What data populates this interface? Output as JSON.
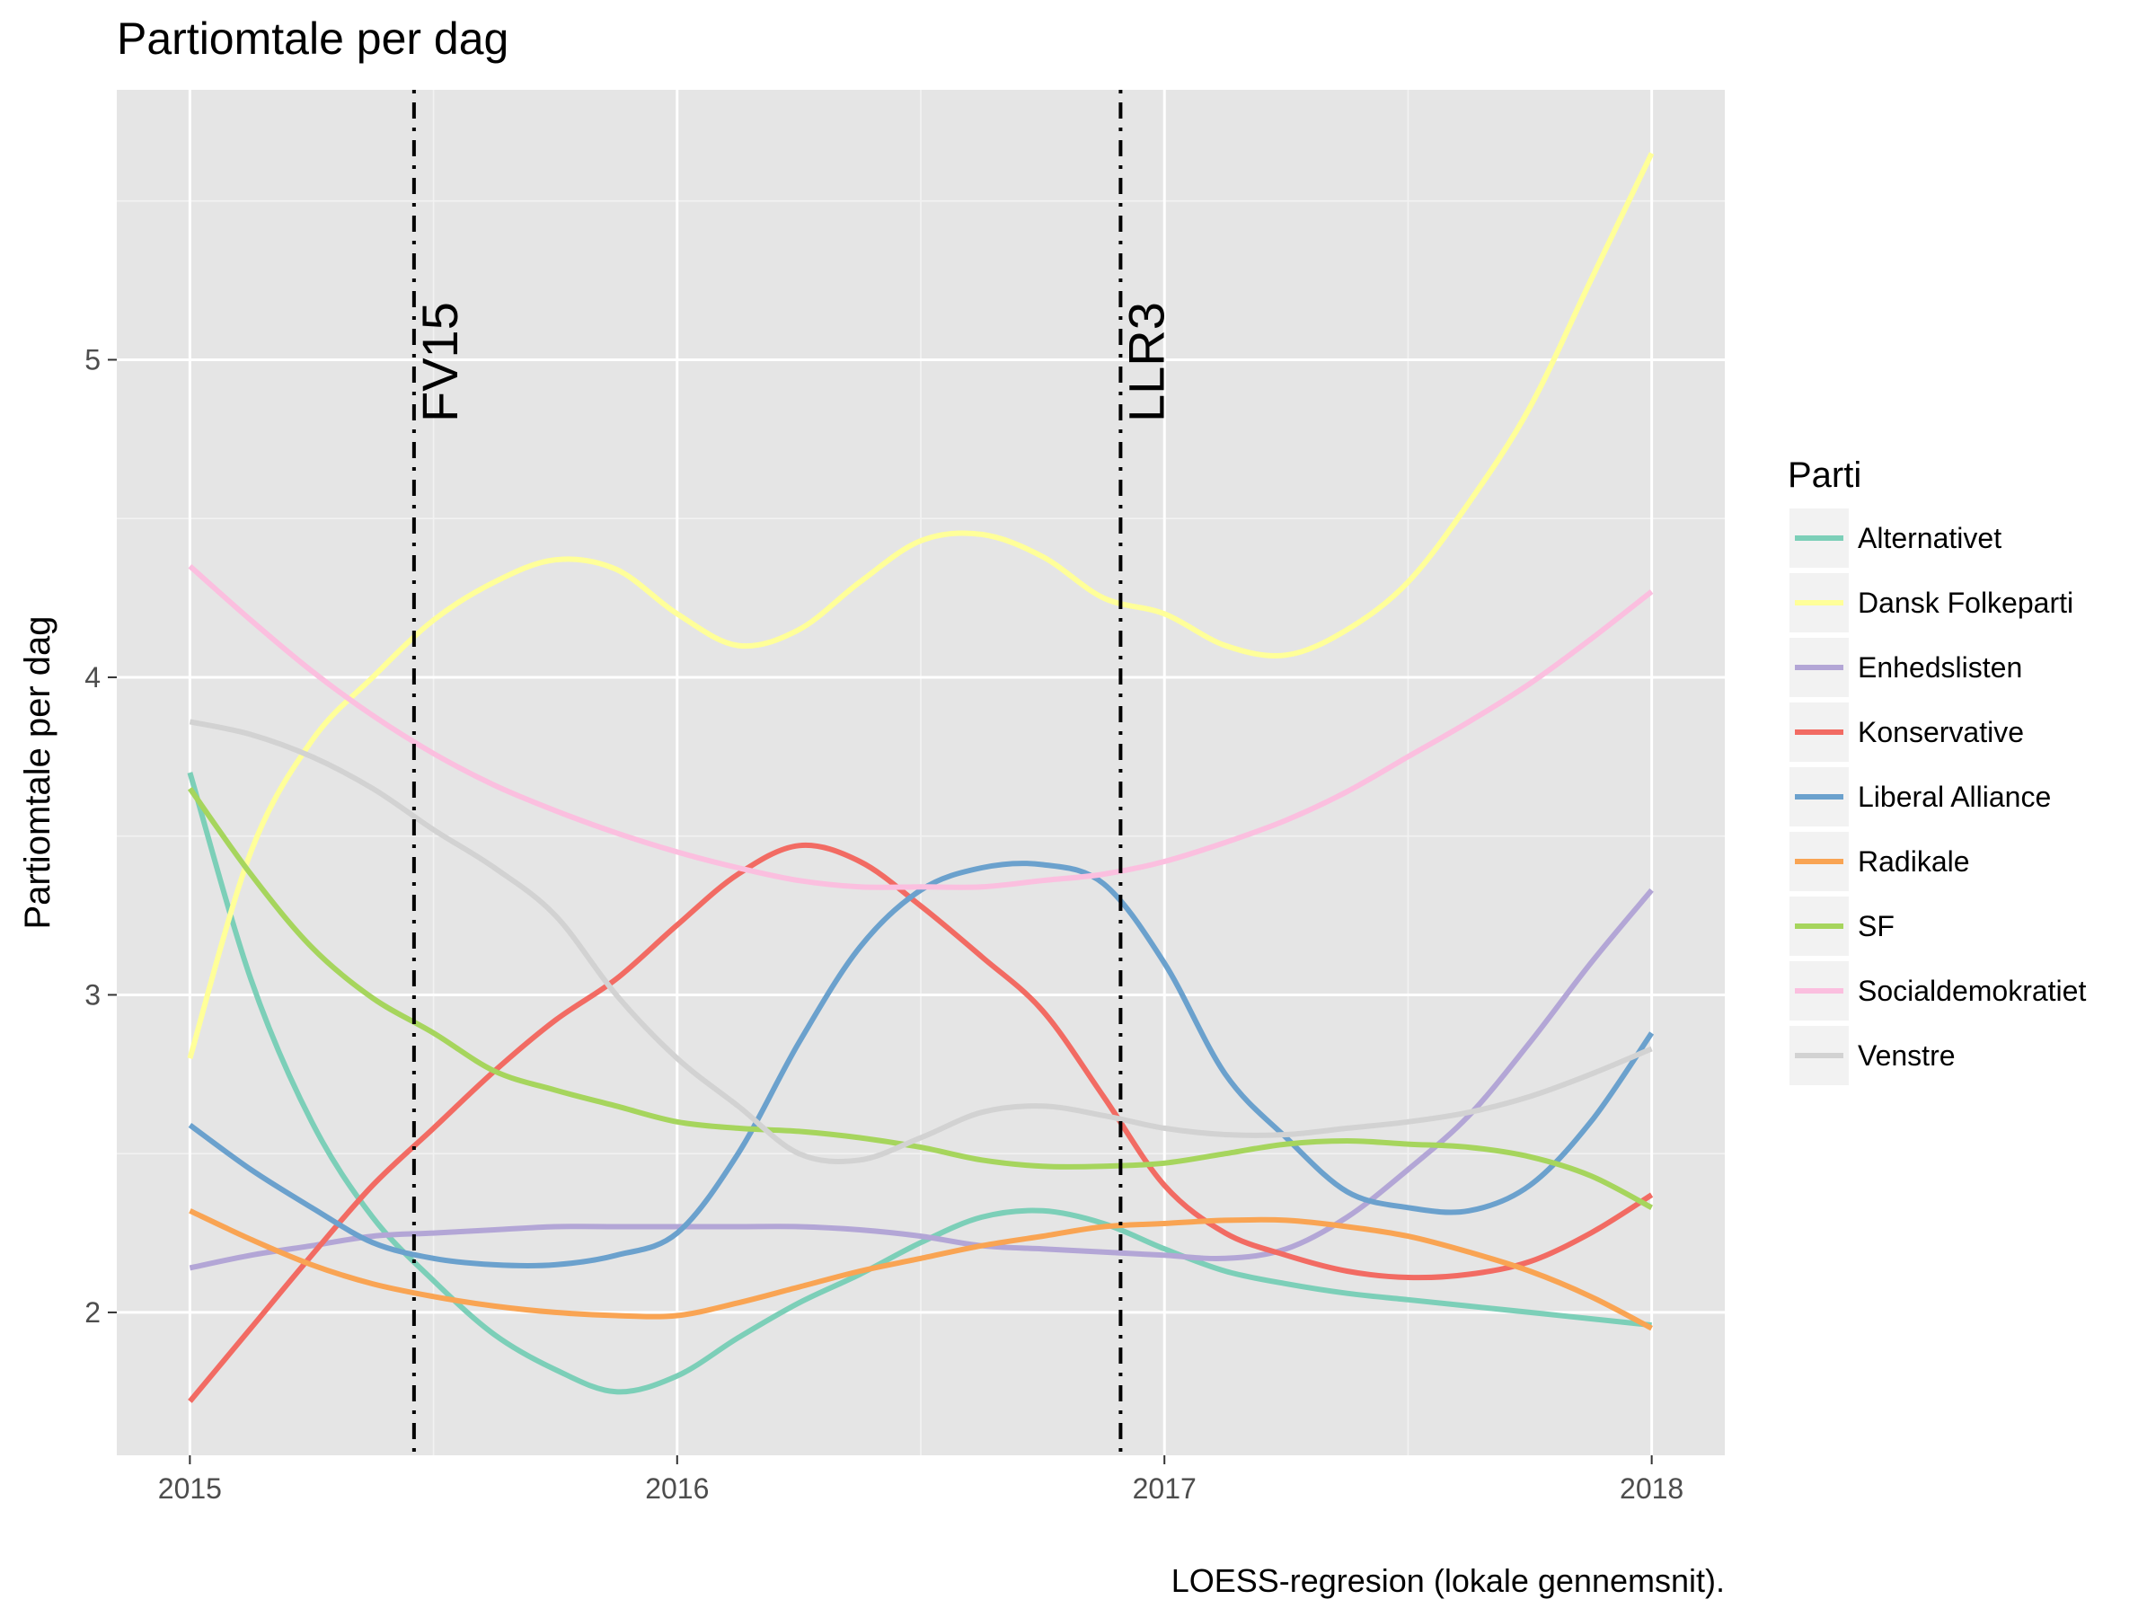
{
  "chart_data": {
    "type": "line",
    "title": "Partiomtale per dag",
    "xlabel": "",
    "ylabel": "Partiomtale per dag",
    "caption": "LOESS-regresion (lokale gennemsnit).",
    "xlim": [
      2014.85,
      2018.15
    ],
    "ylim": [
      1.55,
      5.85
    ],
    "x_ticks": [
      2015,
      2016,
      2017,
      2018
    ],
    "x_tick_labels": [
      "2015",
      "2016",
      "2017",
      "2018"
    ],
    "y_ticks": [
      2,
      3,
      4,
      5
    ],
    "y_tick_labels": [
      "2",
      "3",
      "4",
      "5"
    ],
    "grid": true,
    "legend": {
      "title": "Parti",
      "position": "right"
    },
    "vlines": [
      {
        "x": 2015.46,
        "label": "FV15"
      },
      {
        "x": 2016.91,
        "label": "LLR3"
      }
    ],
    "x": [
      2015.0,
      2015.125,
      2015.25,
      2015.375,
      2015.5,
      2015.625,
      2015.75,
      2015.875,
      2016.0,
      2016.125,
      2016.25,
      2016.375,
      2016.5,
      2016.625,
      2016.75,
      2016.875,
      2017.0,
      2017.125,
      2017.25,
      2017.375,
      2017.5,
      2017.625,
      2017.75,
      2017.875,
      2018.0
    ],
    "series": [
      {
        "name": "Alternativet",
        "color": "#7ccfb8",
        "values": [
          3.7,
          3.05,
          2.6,
          2.3,
          2.1,
          1.93,
          1.82,
          1.75,
          1.8,
          1.92,
          2.03,
          2.12,
          2.22,
          2.3,
          2.32,
          2.28,
          2.2,
          2.13,
          2.09,
          2.06,
          2.04,
          2.02,
          2.0,
          1.98,
          1.96
        ]
      },
      {
        "name": "Dansk Folkeparti",
        "color": "#ffff99",
        "values": [
          2.8,
          3.45,
          3.8,
          4.0,
          4.18,
          4.3,
          4.37,
          4.34,
          4.2,
          4.1,
          4.15,
          4.3,
          4.43,
          4.45,
          4.38,
          4.25,
          4.2,
          4.1,
          4.07,
          4.15,
          4.3,
          4.55,
          4.85,
          5.25,
          5.65
        ]
      },
      {
        "name": "Enhedslisten",
        "color": "#b3a6d6",
        "values": [
          2.14,
          2.18,
          2.21,
          2.24,
          2.25,
          2.26,
          2.27,
          2.27,
          2.27,
          2.27,
          2.27,
          2.26,
          2.24,
          2.21,
          2.2,
          2.19,
          2.18,
          2.17,
          2.2,
          2.3,
          2.45,
          2.62,
          2.85,
          3.1,
          3.33
        ]
      },
      {
        "name": "Konservative",
        "color": "#f26b63",
        "values": [
          1.72,
          1.95,
          2.18,
          2.4,
          2.58,
          2.76,
          2.92,
          3.05,
          3.22,
          3.38,
          3.47,
          3.42,
          3.28,
          3.12,
          2.95,
          2.68,
          2.4,
          2.25,
          2.18,
          2.13,
          2.11,
          2.12,
          2.16,
          2.25,
          2.37
        ]
      },
      {
        "name": "Liberal Alliance",
        "color": "#6ba1cd",
        "values": [
          2.59,
          2.45,
          2.33,
          2.22,
          2.17,
          2.15,
          2.15,
          2.18,
          2.25,
          2.5,
          2.85,
          3.15,
          3.33,
          3.4,
          3.41,
          3.35,
          3.1,
          2.75,
          2.55,
          2.38,
          2.33,
          2.32,
          2.4,
          2.6,
          2.88
        ]
      },
      {
        "name": "Radikale",
        "color": "#f9a453",
        "values": [
          2.32,
          2.23,
          2.15,
          2.09,
          2.05,
          2.02,
          2.0,
          1.99,
          1.99,
          2.03,
          2.08,
          2.13,
          2.17,
          2.21,
          2.24,
          2.27,
          2.28,
          2.29,
          2.29,
          2.27,
          2.24,
          2.19,
          2.13,
          2.05,
          1.95
        ]
      },
      {
        "name": "SF",
        "color": "#a6d55d",
        "values": [
          3.65,
          3.38,
          3.15,
          2.99,
          2.88,
          2.76,
          2.7,
          2.65,
          2.6,
          2.58,
          2.57,
          2.55,
          2.52,
          2.48,
          2.46,
          2.46,
          2.47,
          2.5,
          2.53,
          2.54,
          2.53,
          2.52,
          2.49,
          2.43,
          2.33
        ]
      },
      {
        "name": "Socialdemokratiet",
        "color": "#fbbfdf",
        "values": [
          4.35,
          4.18,
          4.02,
          3.88,
          3.76,
          3.66,
          3.58,
          3.51,
          3.45,
          3.4,
          3.36,
          3.34,
          3.34,
          3.34,
          3.36,
          3.38,
          3.42,
          3.48,
          3.55,
          3.64,
          3.75,
          3.86,
          3.98,
          4.12,
          4.27
        ]
      },
      {
        "name": "Venstre",
        "color": "#d2d2d2",
        "values": [
          3.86,
          3.82,
          3.75,
          3.65,
          3.52,
          3.4,
          3.25,
          3.0,
          2.8,
          2.65,
          2.5,
          2.48,
          2.55,
          2.63,
          2.65,
          2.62,
          2.58,
          2.56,
          2.56,
          2.58,
          2.6,
          2.63,
          2.68,
          2.75,
          2.83
        ]
      }
    ]
  }
}
